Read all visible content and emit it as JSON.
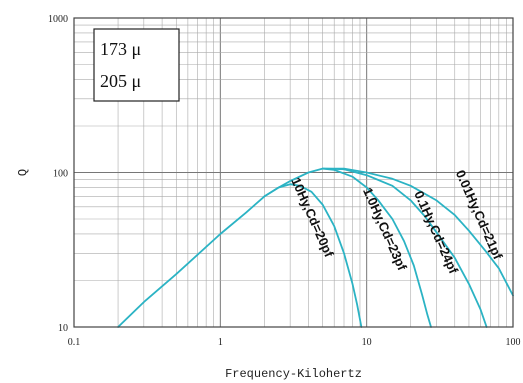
{
  "chart_data": {
    "type": "line",
    "title": "",
    "xlabel": "Frequency-Kilohertz",
    "ylabel": "Q",
    "xscale": "log",
    "yscale": "log",
    "xlim": [
      0.1,
      100
    ],
    "ylim": [
      10,
      1000
    ],
    "x_ticks": [
      {
        "value": 0.1,
        "label": "0.1"
      },
      {
        "value": 1,
        "label": "1"
      },
      {
        "value": 10,
        "label": "10"
      },
      {
        "value": 100,
        "label": "100"
      }
    ],
    "y_ticks": [
      {
        "value": 10,
        "label": "10"
      },
      {
        "value": 100,
        "label": "100"
      },
      {
        "value": 1000,
        "label": "1000"
      }
    ],
    "grid": true,
    "legend_box": {
      "placement": "top-left",
      "lines": [
        "173 μ",
        "205 μ"
      ]
    },
    "line_color": "#2bb3c4",
    "series": [
      {
        "name": "10Hy,Cd=20pf",
        "points": [
          [
            0.2,
            10
          ],
          [
            0.3,
            14.5
          ],
          [
            0.5,
            22
          ],
          [
            1,
            40
          ],
          [
            1.5,
            55
          ],
          [
            2,
            70
          ],
          [
            2.5,
            80
          ],
          [
            3,
            84
          ],
          [
            3.5,
            82
          ],
          [
            4.2,
            75
          ],
          [
            5,
            62
          ],
          [
            6,
            45
          ],
          [
            7,
            30
          ],
          [
            8,
            19
          ],
          [
            8.6,
            14
          ],
          [
            9.2,
            10
          ]
        ]
      },
      {
        "name": "1.0Hy,Cd=23pf",
        "points": [
          [
            2,
            70
          ],
          [
            2.5,
            80
          ],
          [
            3,
            88
          ],
          [
            4,
            100
          ],
          [
            5,
            106
          ],
          [
            6,
            104
          ],
          [
            8,
            94
          ],
          [
            10,
            80
          ],
          [
            12,
            66
          ],
          [
            15,
            50
          ],
          [
            18,
            36
          ],
          [
            21,
            25
          ],
          [
            24,
            16
          ],
          [
            26,
            12
          ],
          [
            27.5,
            10
          ]
        ]
      },
      {
        "name": "0.1Hy,Cd=24pf",
        "points": [
          [
            5,
            106
          ],
          [
            7,
            105
          ],
          [
            10,
            96
          ],
          [
            15,
            82
          ],
          [
            20,
            66
          ],
          [
            25,
            52
          ],
          [
            30,
            41
          ],
          [
            40,
            28
          ],
          [
            50,
            19
          ],
          [
            60,
            13
          ],
          [
            66,
            10
          ]
        ]
      },
      {
        "name": "0.01Hy,Cd=21pf",
        "points": [
          [
            5,
            106
          ],
          [
            7,
            106
          ],
          [
            10,
            100
          ],
          [
            15,
            91
          ],
          [
            20,
            82
          ],
          [
            30,
            66
          ],
          [
            40,
            53
          ],
          [
            50,
            42
          ],
          [
            65,
            31
          ],
          [
            80,
            24
          ],
          [
            100,
            16
          ]
        ]
      }
    ],
    "annotations": [
      {
        "text": "10Hy,Cd=20pf",
        "x": 4.0,
        "y": 50
      },
      {
        "text": "1.0Hy,Cd=23pf",
        "x": 12.5,
        "y": 42
      },
      {
        "text": "0.1Hy,Cd=24pf",
        "x": 28,
        "y": 40
      },
      {
        "text": "0.01Hy,Cd=21pf",
        "x": 55,
        "y": 52
      }
    ]
  }
}
